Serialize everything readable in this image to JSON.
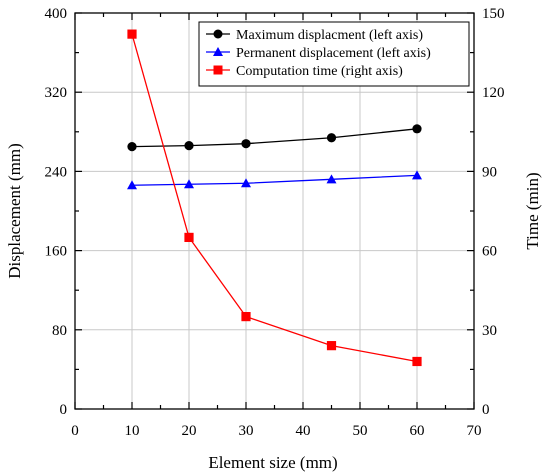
{
  "chart_data": {
    "type": "line",
    "xlabel": "Element size (mm)",
    "ylabel_left": "Displacement (mm)",
    "ylabel_right": "Time (min)",
    "xlim": [
      0,
      70
    ],
    "ylim_left": [
      0,
      400
    ],
    "ylim_right": [
      0,
      150
    ],
    "x_ticks": [
      0,
      10,
      20,
      30,
      40,
      50,
      60,
      70
    ],
    "y_left_ticks": [
      0,
      80,
      160,
      240,
      320,
      400
    ],
    "y_right_ticks": [
      0,
      30,
      60,
      90,
      120,
      150
    ],
    "grid": true,
    "legend_position": "top-right",
    "x": [
      10,
      20,
      30,
      45,
      60
    ],
    "series": [
      {
        "name": "Maximum displacment (left axis)",
        "axis": "left",
        "marker": "circle",
        "color": "#000000",
        "values": [
          265,
          266,
          268,
          274,
          283
        ]
      },
      {
        "name": "Permanent displacement (left axis)",
        "axis": "left",
        "marker": "triangle",
        "color": "#0000ff",
        "values": [
          226,
          227,
          228,
          232,
          236
        ]
      },
      {
        "name": "Computation time (right axis)",
        "axis": "right",
        "marker": "square",
        "color": "#ff0000",
        "values": [
          142,
          65,
          35,
          24,
          18
        ]
      }
    ]
  }
}
